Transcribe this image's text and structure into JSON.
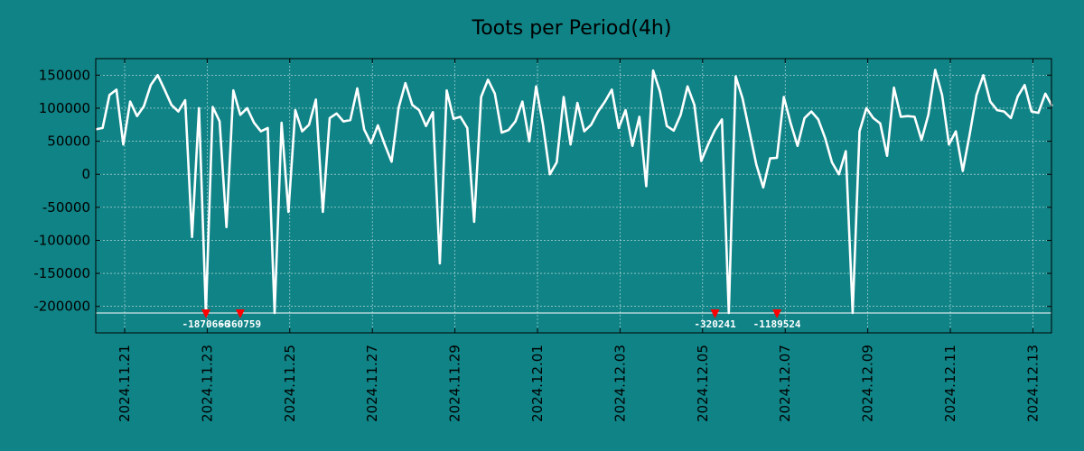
{
  "chart_data": {
    "type": "line",
    "title": "Toots per Period(4h)",
    "xlabel": "",
    "ylabel": "",
    "ylim": [
      -240000,
      175000
    ],
    "clip_floor": -210000,
    "grid": true,
    "colors": {
      "background": "#108386",
      "line": "#ffffff",
      "grid": "#ffffff",
      "marker": "#ff0000",
      "frame": "#000000"
    },
    "y_ticks": [
      {
        "value": 150000,
        "label": "150000"
      },
      {
        "value": 100000,
        "label": "100000"
      },
      {
        "value": 50000,
        "label": "50000"
      },
      {
        "value": 0,
        "label": "0"
      },
      {
        "value": -50000,
        "label": "-50000"
      },
      {
        "value": -100000,
        "label": "-100000"
      },
      {
        "value": -150000,
        "label": "-150000"
      },
      {
        "value": -200000,
        "label": "-200000"
      }
    ],
    "x_range": [
      -0.7,
      22.45
    ],
    "x_ticks": [
      {
        "value": 0,
        "label": "2024.11.21"
      },
      {
        "value": 2,
        "label": "2024.11.23"
      },
      {
        "value": 4,
        "label": "2024.11.25"
      },
      {
        "value": 6,
        "label": "2024.11.27"
      },
      {
        "value": 8,
        "label": "2024.11.29"
      },
      {
        "value": 10,
        "label": "2024.12.01"
      },
      {
        "value": 12,
        "label": "2024.12.03"
      },
      {
        "value": 14,
        "label": "2024.12.05"
      },
      {
        "value": 16,
        "label": "2024.12.07"
      },
      {
        "value": 18,
        "label": "2024.12.09"
      },
      {
        "value": 20,
        "label": "2024.12.11"
      },
      {
        "value": 22,
        "label": "2024.12.13"
      }
    ],
    "series": [
      {
        "name": "Toots per Period(4h)",
        "x_start": -0.7,
        "x_step": 0.16667,
        "values": [
          68000,
          70000,
          120000,
          128000,
          45000,
          110000,
          88000,
          103000,
          135000,
          150000,
          128000,
          105000,
          95000,
          112000,
          -95000,
          100000,
          -210000,
          102000,
          80000,
          -80000,
          127000,
          90000,
          100000,
          78000,
          65000,
          70000,
          -210000,
          78000,
          -57000,
          97000,
          65000,
          75000,
          113000,
          -57000,
          85000,
          92000,
          80000,
          82000,
          130000,
          68000,
          47000,
          74000,
          45000,
          19000,
          100000,
          138000,
          105000,
          97000,
          73000,
          94000,
          -135000,
          127000,
          84000,
          87000,
          70000,
          -72000,
          117000,
          143000,
          122000,
          63000,
          67000,
          80000,
          110000,
          50000,
          133000,
          75000,
          0,
          18000,
          117000,
          45000,
          108000,
          65000,
          75000,
          95000,
          110000,
          128000,
          70000,
          97000,
          43000,
          87000,
          -18000,
          157000,
          125000,
          73000,
          66000,
          90000,
          133000,
          105000,
          20000,
          45000,
          67000,
          83000,
          -210000,
          148000,
          115000,
          65000,
          15000,
          -20000,
          24000,
          25000,
          117000,
          77000,
          43000,
          85000,
          95000,
          83000,
          55000,
          18000,
          0,
          35000,
          -210000,
          65000,
          100000,
          85000,
          77000,
          28000,
          131000,
          87000,
          88000,
          87000,
          52000,
          90000,
          158000,
          120000,
          45000,
          65000,
          5000,
          60000,
          120000,
          150000,
          110000,
          97000,
          95000,
          85000,
          118000,
          135000,
          95000,
          93000,
          122000,
          103000
        ]
      }
    ],
    "clipped_points": [
      {
        "x": 1.97,
        "label": "-1870666"
      },
      {
        "x": 2.8,
        "label": "-360759"
      },
      {
        "x": 14.3,
        "label": "-320241"
      },
      {
        "x": 15.8,
        "label": "-1189524"
      }
    ]
  }
}
